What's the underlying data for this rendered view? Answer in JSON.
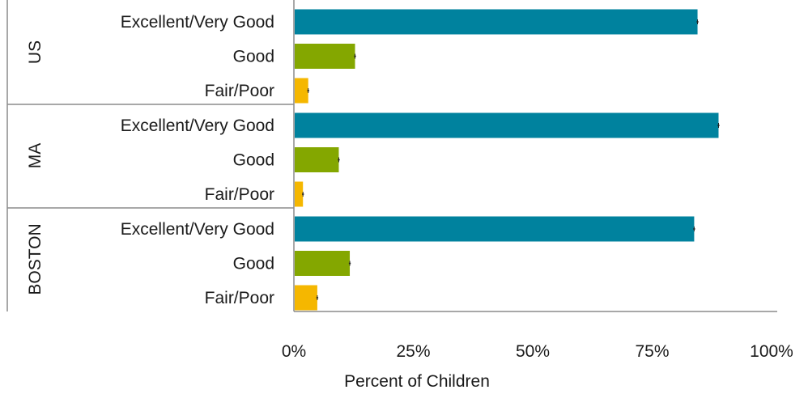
{
  "chart_data": {
    "type": "bar",
    "orientation": "horizontal",
    "xlabel": "Percent of Children",
    "xlim": [
      0,
      100
    ],
    "xticks": [
      {
        "value": 0,
        "label": "0%"
      },
      {
        "value": 25,
        "label": "25%"
      },
      {
        "value": 50,
        "label": "50%"
      },
      {
        "value": 75,
        "label": "75%"
      },
      {
        "value": 100,
        "label": "100%"
      }
    ],
    "grid": false,
    "legend": "none",
    "colors": {
      "Excellent/Very Good": "#00829e",
      "Good": "#84a700",
      "Fair/Poor": "#f5b700"
    },
    "groups": [
      {
        "label": "US",
        "categories": [
          {
            "label": "Excellent/Very Good",
            "value": 84.5,
            "error": 0.2
          },
          {
            "label": "Good",
            "value": 12.8,
            "error": 0.2
          },
          {
            "label": "Fair/Poor",
            "value": 3.0,
            "error": 0.2
          }
        ]
      },
      {
        "label": "MA",
        "categories": [
          {
            "label": "Excellent/Very Good",
            "value": 88.9,
            "error": 0.2
          },
          {
            "label": "Good",
            "value": 9.4,
            "error": 0.2
          },
          {
            "label": "Fair/Poor",
            "value": 1.9,
            "error": 0.2
          }
        ]
      },
      {
        "label": "BOSTON",
        "categories": [
          {
            "label": "Excellent/Very Good",
            "value": 83.8,
            "error": 0.2
          },
          {
            "label": "Good",
            "value": 11.7,
            "error": 0.2
          },
          {
            "label": "Fair/Poor",
            "value": 4.9,
            "error": 0.2
          }
        ]
      }
    ]
  }
}
